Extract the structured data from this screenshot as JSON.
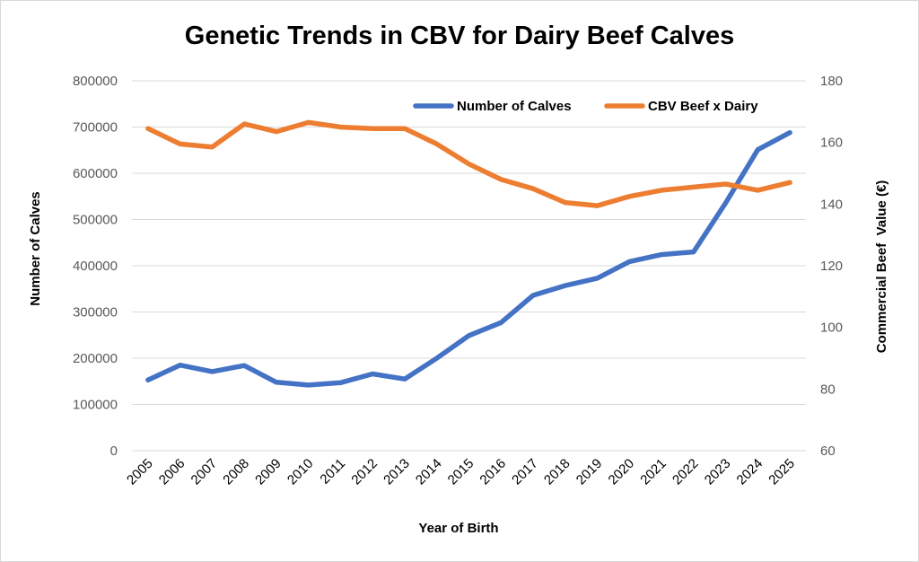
{
  "chart_data": {
    "type": "line",
    "title": "Genetic Trends in CBV for Dairy Beef Calves",
    "xlabel": "Year of Birth",
    "ylabel": "Number of Calves",
    "y2label": "Commercial Beef  Value (€)",
    "categories": [
      "2005",
      "2006",
      "2007",
      "2008",
      "2009",
      "2010",
      "2011",
      "2012",
      "2013",
      "2014",
      "2015",
      "2016",
      "2017",
      "2018",
      "2019",
      "2020",
      "2021",
      "2022",
      "2023",
      "2024",
      "2025"
    ],
    "ylim": [
      0,
      800000
    ],
    "y2lim": [
      60,
      180
    ],
    "y_ticks": [
      "0",
      "100000",
      "200000",
      "300000",
      "400000",
      "500000",
      "600000",
      "700000",
      "800000"
    ],
    "y2_ticks": [
      "60",
      "80",
      "100",
      "120",
      "140",
      "160",
      "180"
    ],
    "grid": true,
    "legend_position": "top-right",
    "series": [
      {
        "name": "Number of Calves",
        "axis": "left",
        "color": "#4472C4",
        "values": [
          153000,
          185000,
          171000,
          184000,
          148000,
          142000,
          147000,
          166000,
          155000,
          200000,
          249000,
          277000,
          336000,
          357000,
          373000,
          409000,
          424000,
          430000,
          536000,
          651000,
          688000
        ]
      },
      {
        "name": "CBV Beef x Dairy",
        "axis": "right",
        "color": "#ED7D31",
        "values": [
          164.5,
          159.5,
          158.5,
          166,
          163.5,
          166.5,
          165,
          164.5,
          164.5,
          159.5,
          153,
          148,
          145,
          140.5,
          139.5,
          142.5,
          144.5,
          145.5,
          146.5,
          144.5,
          147
        ]
      }
    ]
  }
}
